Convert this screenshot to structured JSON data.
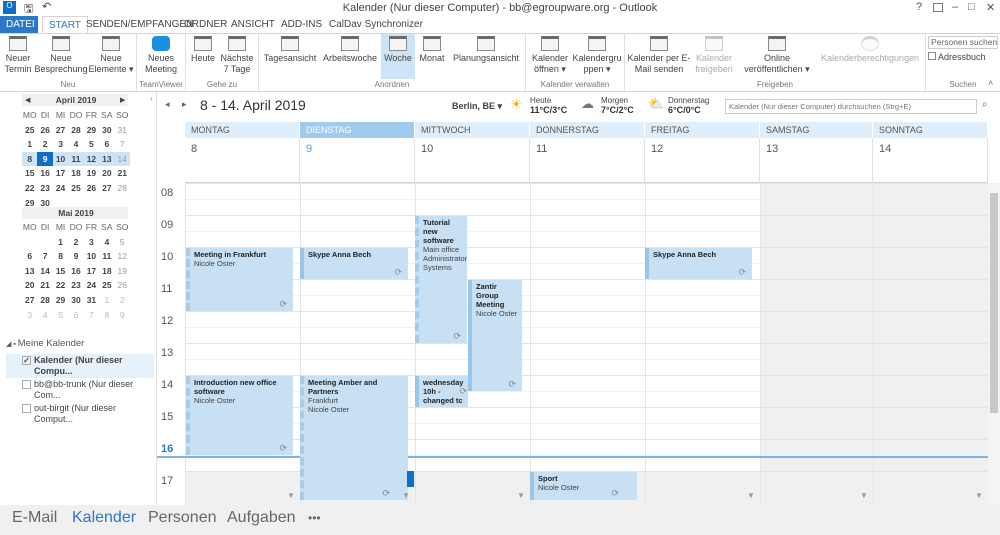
{
  "window": {
    "title": "Kalender (Nur dieser Computer) - bb@egroupware.org - Outlook",
    "help": "?",
    "minimize": "–",
    "maximize": "□",
    "close": "✕"
  },
  "tabs": [
    "DATEI",
    "START",
    "SENDEN/EMPFANGEN",
    "ORDNER",
    "ANSICHT",
    "ADD-INS",
    "CalDav Synchronizer"
  ],
  "ribbon": {
    "buttons": {
      "neuer_termin": "Neuer Termin",
      "neue_besprechung": "Neue Besprechung",
      "neue_elemente": "Neue Elemente ▾",
      "neues_meeting": "Neues Meeting",
      "heute": "Heute",
      "naechste": "Nächste 7 Tage",
      "tagesansicht": "Tagesansicht",
      "arbeitswoche": "Arbeitswoche",
      "woche": "Woche",
      "monat": "Monat",
      "planungsansicht": "Planungsansicht",
      "kalender_oeffnen": "Kalender öffnen ▾",
      "kalendergruppen": "Kalendergruppen ▾",
      "kalender_email": "Kalender per E-Mail senden",
      "kalender_freigeben": "Kalender freigeben",
      "online": "Online veröffentlichen ▾",
      "berechtigungen": "Kalenderberechtigungen",
      "personen_suchen": "Personen suchen",
      "adressbuch": "Adressbuch"
    },
    "groups": [
      "Neu",
      "TeamViewer",
      "Gehe zu",
      "Anordnen",
      "Kalender verwalten",
      "Freigeben",
      "Suchen"
    ]
  },
  "mini_calendars": [
    {
      "title": "April 2019",
      "dows": [
        "MO",
        "DI",
        "MI",
        "DO",
        "FR",
        "SA",
        "SO"
      ],
      "days": [
        "25",
        "26",
        "27",
        "28",
        "29",
        "30",
        "31",
        "1",
        "2",
        "3",
        "4",
        "5",
        "6",
        "7",
        "8",
        "9",
        "10",
        "11",
        "12",
        "13",
        "14",
        "15",
        "16",
        "17",
        "18",
        "19",
        "20",
        "21",
        "22",
        "23",
        "24",
        "25",
        "26",
        "27",
        "28",
        "29",
        "30"
      ]
    },
    {
      "title": "Mai 2019",
      "dows": [
        "MO",
        "DI",
        "MI",
        "DO",
        "FR",
        "SA",
        "SO"
      ],
      "days": [
        "",
        "",
        "1",
        "2",
        "3",
        "4",
        "5",
        "6",
        "7",
        "8",
        "9",
        "10",
        "11",
        "12",
        "13",
        "14",
        "15",
        "16",
        "17",
        "18",
        "19",
        "20",
        "21",
        "22",
        "23",
        "24",
        "25",
        "26",
        "27",
        "28",
        "29",
        "30",
        "31",
        "1",
        "2",
        "3",
        "4",
        "5",
        "6",
        "7",
        "8",
        "9"
      ]
    }
  ],
  "calendars": {
    "group": "Meine Kalender",
    "items": [
      {
        "label": "Kalender (Nur dieser Compu...",
        "checked": true
      },
      {
        "label": "bb@bb-trunk (Nur dieser Com...",
        "checked": false
      },
      {
        "label": "out-birgit (Nur dieser Comput...",
        "checked": false
      }
    ]
  },
  "header": {
    "range": "8 - 14. April 2019",
    "location": "Berlin, BE ▾",
    "weather": [
      {
        "day": "Heute",
        "temp": "11°C/3°C",
        "icon": "sun-icon"
      },
      {
        "day": "Morgen",
        "temp": "7°C/2°C",
        "icon": "cloud-icon"
      },
      {
        "day": "Donnerstag",
        "temp": "6°C/0°C",
        "icon": "sun-cloud-icon"
      }
    ],
    "search_placeholder": "Kalender (Nur dieser Computer) durchsuchen (Strg+E)"
  },
  "days": [
    {
      "name": "MONTAG",
      "num": "8"
    },
    {
      "name": "DIENSTAG",
      "num": "9"
    },
    {
      "name": "MITTWOCH",
      "num": "10"
    },
    {
      "name": "DONNERSTAG",
      "num": "11"
    },
    {
      "name": "FREITAG",
      "num": "12"
    },
    {
      "name": "SAMSTAG",
      "num": "13"
    },
    {
      "name": "SONNTAG",
      "num": "14"
    }
  ],
  "hours": [
    "08",
    "09",
    "10",
    "11",
    "12",
    "13",
    "14",
    "15",
    "16",
    "17"
  ],
  "events": [
    {
      "title": "Meeting in Frankfurt",
      "lines": [
        "Nicole Oster"
      ]
    },
    {
      "title": "Skype Anna Bech",
      "lines": []
    },
    {
      "title": "Tutorial new software",
      "lines": [
        "Main office",
        "Administrator",
        "Systems"
      ]
    },
    {
      "title": "Zantir Group Meeting",
      "lines": [
        "Nicole Oster"
      ]
    },
    {
      "title": "wednesday 10h - changed tc",
      "lines": []
    },
    {
      "title": "Skype Anna Bech",
      "lines": []
    },
    {
      "title": "Introduction new office software",
      "lines": [
        "Nicole Oster"
      ]
    },
    {
      "title": "Meeting Amber and Partners",
      "lines": [
        "Frankfurt",
        "Nicole Oster"
      ]
    },
    {
      "title": "Sport",
      "lines": [
        "Nicole Oster"
      ]
    }
  ],
  "bottom_nav": [
    "E-Mail",
    "Kalender",
    "Personen",
    "Aufgaben",
    "•••"
  ],
  "colors": {
    "accent": "#2b78c8",
    "event": "#c7e0f4",
    "today": "#0f6fc6"
  }
}
